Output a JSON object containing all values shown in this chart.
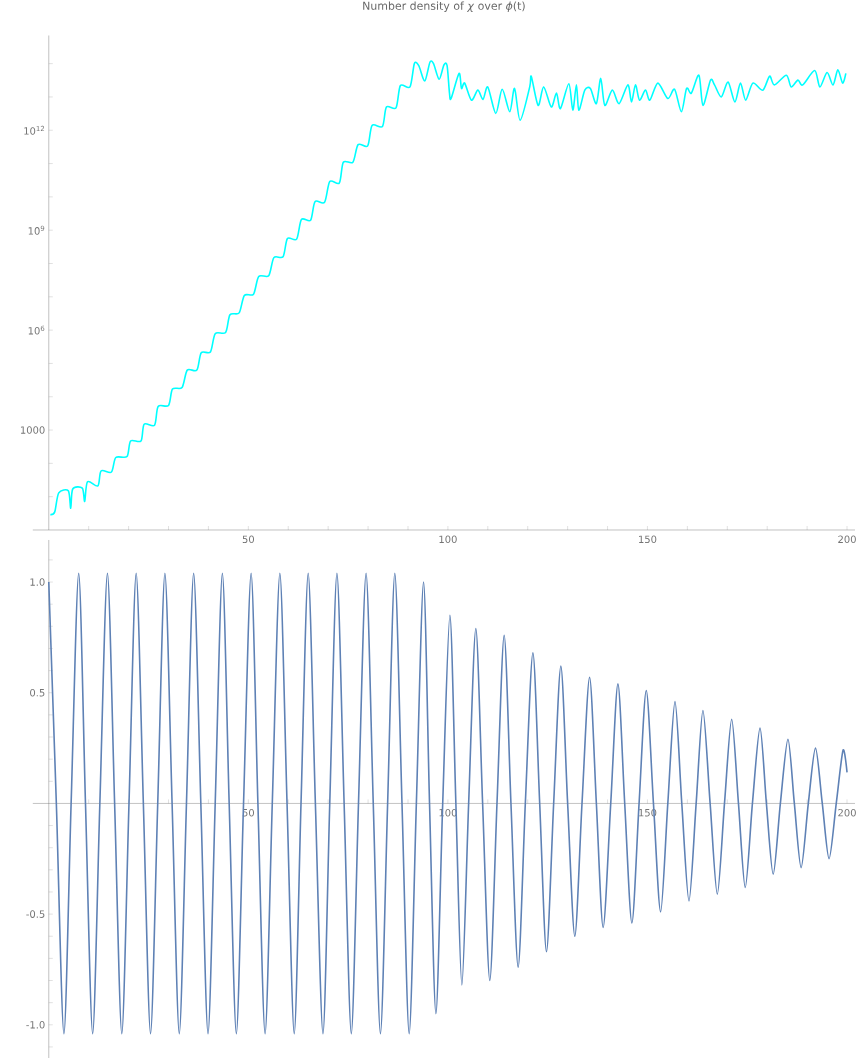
{
  "chart_data": [
    {
      "type": "line",
      "title": "Number density of *χ* over *ϕ*(t)",
      "color": "#00ffff",
      "log": "y",
      "x": [
        0.4,
        1.5,
        2.5,
        4.9,
        5.5,
        6.0,
        8.4,
        9.0,
        9.7,
        12.3,
        13.1,
        15.7,
        16.8,
        19.6,
        20.5,
        23.1,
        23.9,
        26.5,
        27.4,
        30.0,
        31.0,
        33.4,
        34.7,
        37.1,
        38.2,
        40.5,
        41.7,
        44.3,
        45.4,
        47.7,
        49.0,
        51.3,
        52.6,
        55.1,
        56.4,
        58.7,
        59.8,
        62.1,
        63.3,
        65.6,
        66.7,
        69.1,
        70.4,
        72.8,
        73.8,
        76.2,
        77.5,
        79.9,
        81.0,
        83.6,
        84.6,
        87.0,
        88.1,
        90.5,
        91.6,
        92.7,
        94.2,
        95.5,
        96.4,
        97.8,
        99.0,
        99.8,
        100.4,
        100.8,
        102.8,
        103.4,
        104.2,
        105.9,
        107.5,
        108.8,
        110.0,
        112.0,
        113.6,
        115.5,
        116.7,
        118.1,
        120.5,
        120.9,
        122.6,
        124.0,
        125.9,
        127.2,
        128.2,
        130.3,
        131.3,
        132.2,
        132.8,
        134.3,
        135.7,
        137.2,
        138.3,
        139.3,
        141.2,
        142.9,
        145.1,
        146.0,
        147.0,
        148.0,
        149.5,
        150.6,
        152.6,
        155.1,
        156.8,
        158.5,
        159.8,
        161.0,
        162.9,
        163.9,
        165.8,
        166.8,
        168.5,
        170.2,
        171.9,
        173.3,
        174.6,
        176.4,
        178.9,
        180.6,
        181.8,
        184.8,
        186.0,
        187.7,
        188.9,
        191.9,
        193.2,
        195.0,
        196.5,
        197.7,
        198.9,
        199.7
      ],
      "values": [
        2.9,
        3.5,
        13,
        15,
        4.5,
        17,
        18,
        7.2,
        28,
        21,
        59,
        55,
        150,
        160,
        470,
        470,
        1500,
        1400,
        5100,
        5500,
        17000,
        19000,
        63000,
        63000,
        210000.0,
        220000.0,
        780000.0,
        850000.0,
        2900000.0,
        3300000.0,
        11000000.0,
        12000000.0,
        41000000.0,
        43000000.0,
        150000000.0,
        160000000.0,
        560000000.0,
        540000000.0,
        2100000000.0,
        2000000000.0,
        7200000000.0,
        6900000000.0,
        29000000000.0,
        26000000000.0,
        110000000000.0,
        110000000000.0,
        370000000000.0,
        340000000000.0,
        1400000000000.0,
        1300000000000.0,
        5000000000000.0,
        4700000000000.0,
        22000000000000.0,
        20000000000000.0,
        100000000000000.0,
        87000000000000.0,
        30000000000000.0,
        110000000000000.0,
        100000000000000.0,
        34000000000000.0,
        91000000000000.0,
        87000000000000.0,
        13000000000000.0,
        9000000000000.0,
        51000000000000.0,
        18000000000000.0,
        26000000000000.0,
        8000000000000.0,
        16000000000000.0,
        8400000000000.0,
        20000000000000.0,
        3200000000000.0,
        17000000000000.0,
        3600000000000.0,
        18000000000000.0,
        2000000000000.0,
        20000000000000.0,
        41000000000000.0,
        5600000000000.0,
        20000000000000.0,
        5000000000000.0,
        13000000000000.0,
        4500000000000.0,
        25000000000000.0,
        4000000000000.0,
        23000000000000.0,
        4000000000000.0,
        16000000000000.0,
        18000000000000.0,
        6300000000000.0,
        36000000000000.0,
        5600000000000.0,
        16000000000000.0,
        6300000000000.0,
        23000000000000.0,
        7100000000000.0,
        23000000000000.0,
        8000000000000.0,
        16000000000000.0,
        8000000000000.0,
        26000000000000.0,
        9000000000000.0,
        17000000000000.0,
        3600000000000.0,
        18000000000000.0,
        13000000000000.0,
        45000000000000.0,
        5600000000000.0,
        32000000000000.0,
        23000000000000.0,
        10000000000000.0,
        28000000000000.0,
        7100000000000.0,
        26000000000000.0,
        8000000000000.0,
        26000000000000.0,
        16000000000000.0,
        42000000000000.0,
        23000000000000.0,
        45000000000000.0,
        20000000000000.0,
        32000000000000.0,
        23000000000000.0,
        62000000000000.0,
        20000000000000.0,
        54000000000000.0,
        23000000000000.0,
        65000000000000.0,
        26000000000000.0,
        51000000000000.0
      ],
      "xlim": [
        -4,
        202
      ],
      "ylim": [
        1,
        700000000000000.0
      ],
      "xticks": [
        {
          "value": 10,
          "label": null
        },
        {
          "value": 20,
          "label": null
        },
        {
          "value": 30,
          "label": null
        },
        {
          "value": 40,
          "label": null
        },
        50,
        {
          "value": 60,
          "label": null
        },
        {
          "value": 70,
          "label": null
        },
        {
          "value": 80,
          "label": null
        },
        {
          "value": 90,
          "label": null
        },
        100,
        {
          "value": 110,
          "label": null
        },
        {
          "value": 120,
          "label": null
        },
        {
          "value": 130,
          "label": null
        },
        {
          "value": 140,
          "label": null
        },
        150,
        {
          "value": 160,
          "label": null
        },
        {
          "value": 170,
          "label": null
        },
        {
          "value": 180,
          "label": null
        },
        {
          "value": 190,
          "label": null
        },
        200
      ],
      "yticks": [
        {
          "value": 10,
          "label": null
        },
        {
          "value": 100,
          "label": null
        },
        1000,
        {
          "value": 10000,
          "label": null
        },
        {
          "value": 100000,
          "label": null
        },
        {
          "value": 1000000,
          "label": "10$^{6}$"
        },
        {
          "value": 10000000.0,
          "label": null
        },
        {
          "value": 100000000.0,
          "label": null
        },
        {
          "value": 1000000000.0,
          "label": "10$^{9}$"
        },
        {
          "value": 10000000000.0,
          "label": null
        },
        {
          "value": 100000000000.0,
          "label": null
        },
        {
          "value": 1000000000000.0,
          "label": "10$^{12}$"
        },
        {
          "value": 10000000000000.0,
          "label": null
        },
        {
          "value": 100000000000000.0,
          "label": null
        }
      ]
    },
    {
      "type": "line",
      "color": "#5e81b5",
      "x": [
        0,
        1.9,
        3.8,
        5.6,
        7.5,
        9.2,
        11.0,
        12.8,
        14.7,
        16.5,
        18.3,
        20.1,
        21.9,
        23.7,
        25.5,
        27.3,
        29.1,
        30.9,
        32.7,
        34.5,
        36.3,
        38.1,
        39.9,
        41.7,
        43.5,
        45.2,
        47.0,
        48.8,
        50.7,
        52.4,
        54.2,
        56.0,
        57.9,
        59.7,
        61.5,
        63.2,
        65.0,
        66.8,
        68.7,
        70.4,
        72.2,
        74.0,
        75.8,
        77.6,
        79.5,
        81.3,
        83.1,
        84.9,
        86.7,
        88.5,
        90.3,
        92.1,
        93.9,
        95.4,
        97.0,
        98.7,
        100.5,
        102.0,
        103.5,
        105.2,
        107.0,
        108.7,
        110.5,
        112.3,
        114.1,
        115.8,
        117.6,
        119.4,
        121.3,
        123.0,
        124.7,
        126.5,
        128.3,
        130.0,
        131.8,
        133.6,
        135.5,
        137.2,
        138.9,
        140.8,
        142.6,
        144.3,
        146.1,
        147.9,
        149.7,
        151.5,
        153.3,
        155.1,
        156.9,
        158.6,
        160.4,
        162.2,
        163.9,
        165.7,
        167.5,
        169.3,
        171.1,
        172.8,
        174.5,
        176.3,
        178.2,
        179.8,
        181.5,
        183.3,
        185.2,
        186.8,
        188.5,
        190.3,
        192.1,
        193.8,
        195.5,
        197.3,
        199.0,
        200
      ],
      "values": [
        1.0,
        0,
        -1.04,
        0,
        1.04,
        0,
        -1.04,
        0,
        1.04,
        0,
        -1.04,
        0,
        1.04,
        0,
        -1.04,
        0,
        1.04,
        0,
        -1.04,
        0,
        1.04,
        0,
        -1.04,
        0,
        1.04,
        0,
        -1.04,
        0,
        1.04,
        0,
        -1.04,
        0,
        1.04,
        0,
        -1.04,
        0,
        1.04,
        0,
        -1.04,
        0,
        1.04,
        0,
        -1.04,
        0,
        1.04,
        0,
        -1.04,
        0,
        1.04,
        0,
        -1.04,
        0,
        1.0,
        0,
        -0.95,
        0,
        0.85,
        0,
        -0.82,
        0,
        0.79,
        0,
        -0.8,
        0,
        0.76,
        0,
        -0.74,
        0,
        0.68,
        0,
        -0.67,
        0,
        0.62,
        0,
        -0.6,
        0,
        0.57,
        0,
        -0.56,
        0,
        0.54,
        0,
        -0.54,
        0,
        0.51,
        0,
        -0.49,
        0,
        0.46,
        0,
        -0.44,
        0,
        0.42,
        0,
        -0.41,
        0,
        0.38,
        0,
        -0.38,
        0,
        0.34,
        0,
        -0.32,
        0,
        0.29,
        0,
        -0.29,
        0,
        0.25,
        0,
        -0.25,
        0,
        0.24,
        0.14
      ],
      "xlim": [
        -4,
        202
      ],
      "ylim": [
        -1.15,
        1.19
      ],
      "xticks": [
        {
          "value": 10,
          "label": null
        },
        {
          "value": 20,
          "label": null
        },
        {
          "value": 30,
          "label": null
        },
        {
          "value": 40,
          "label": null
        },
        50,
        {
          "value": 60,
          "label": null
        },
        {
          "value": 70,
          "label": null
        },
        {
          "value": 80,
          "label": null
        },
        {
          "value": 90,
          "label": null
        },
        100,
        {
          "value": 110,
          "label": null
        },
        {
          "value": 120,
          "label": null
        },
        {
          "value": 130,
          "label": null
        },
        {
          "value": 140,
          "label": null
        },
        150,
        {
          "value": 160,
          "label": null
        },
        {
          "value": 170,
          "label": null
        },
        {
          "value": 180,
          "label": null
        },
        {
          "value": 190,
          "label": null
        },
        200
      ],
      "yticks": [
        {
          "value": -1.1,
          "label": null
        },
        {
          "value": -1.0,
          "label": "-1.0"
        },
        {
          "value": -0.9,
          "label": null
        },
        {
          "value": -0.8,
          "label": null
        },
        {
          "value": -0.7,
          "label": null
        },
        {
          "value": -0.6,
          "label": null
        },
        -0.5,
        {
          "value": -0.4,
          "label": null
        },
        {
          "value": -0.3,
          "label": null
        },
        {
          "value": -0.2,
          "label": null
        },
        {
          "value": -0.1,
          "label": null
        },
        {
          "value": 0.1,
          "label": null
        },
        {
          "value": 0.2,
          "label": null
        },
        {
          "value": 0.3,
          "label": null
        },
        {
          "value": 0.4,
          "label": null
        },
        0.5,
        {
          "value": 0.6,
          "label": null
        },
        {
          "value": 0.7,
          "label": null
        },
        {
          "value": 0.8,
          "label": null
        },
        {
          "value": 0.9,
          "label": null
        },
        {
          "value": 1.0,
          "label": "1.0"
        },
        {
          "value": 1.1,
          "label": null
        }
      ]
    }
  ]
}
